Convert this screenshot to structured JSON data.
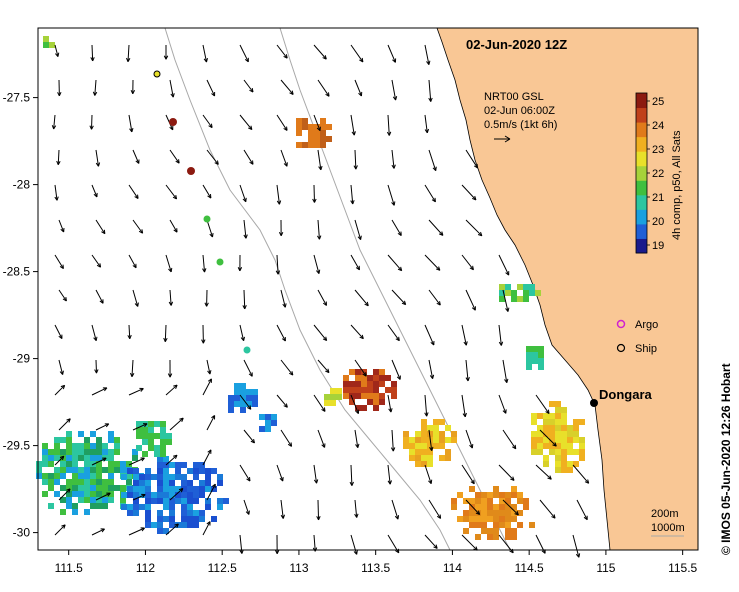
{
  "map": {
    "title": "02-Jun-2020 12Z",
    "info_lines": [
      "NRT00 GSL",
      "02-Jun 06:00Z",
      "0.5m/s (1kt 6h)"
    ],
    "x_ticks": [
      "111.5",
      "112",
      "112.5",
      "113",
      "113.5",
      "114",
      "114.5",
      "115",
      "115.5"
    ],
    "y_ticks": [
      "-27.5",
      "-28",
      "-28.5",
      "-29",
      "-29.5",
      "-30"
    ],
    "colorbar": {
      "label": "4h comp, p50, All Sats",
      "ticks": [
        "25",
        "24",
        "23",
        "22",
        "21",
        "20",
        "19"
      ],
      "colors": [
        "#1a1a8c",
        "#1f5fd6",
        "#1aa0e0",
        "#2cc6a0",
        "#3fbf3f",
        "#a6d23a",
        "#e8e02a",
        "#f0b020",
        "#e07a1a",
        "#c0401a",
        "#8c1a10"
      ]
    },
    "legend": {
      "argo": "Argo",
      "ship": "Ship"
    },
    "place": "Dongara",
    "depth_labels": [
      "200m",
      "1000m"
    ],
    "credit": "© IMOS 05-Jun-2020 12:26 Hobart",
    "colors": {
      "land": "#f9c795",
      "sst_warm": "#e08a1a",
      "sst_cool": "#1a4fd0"
    }
  }
}
